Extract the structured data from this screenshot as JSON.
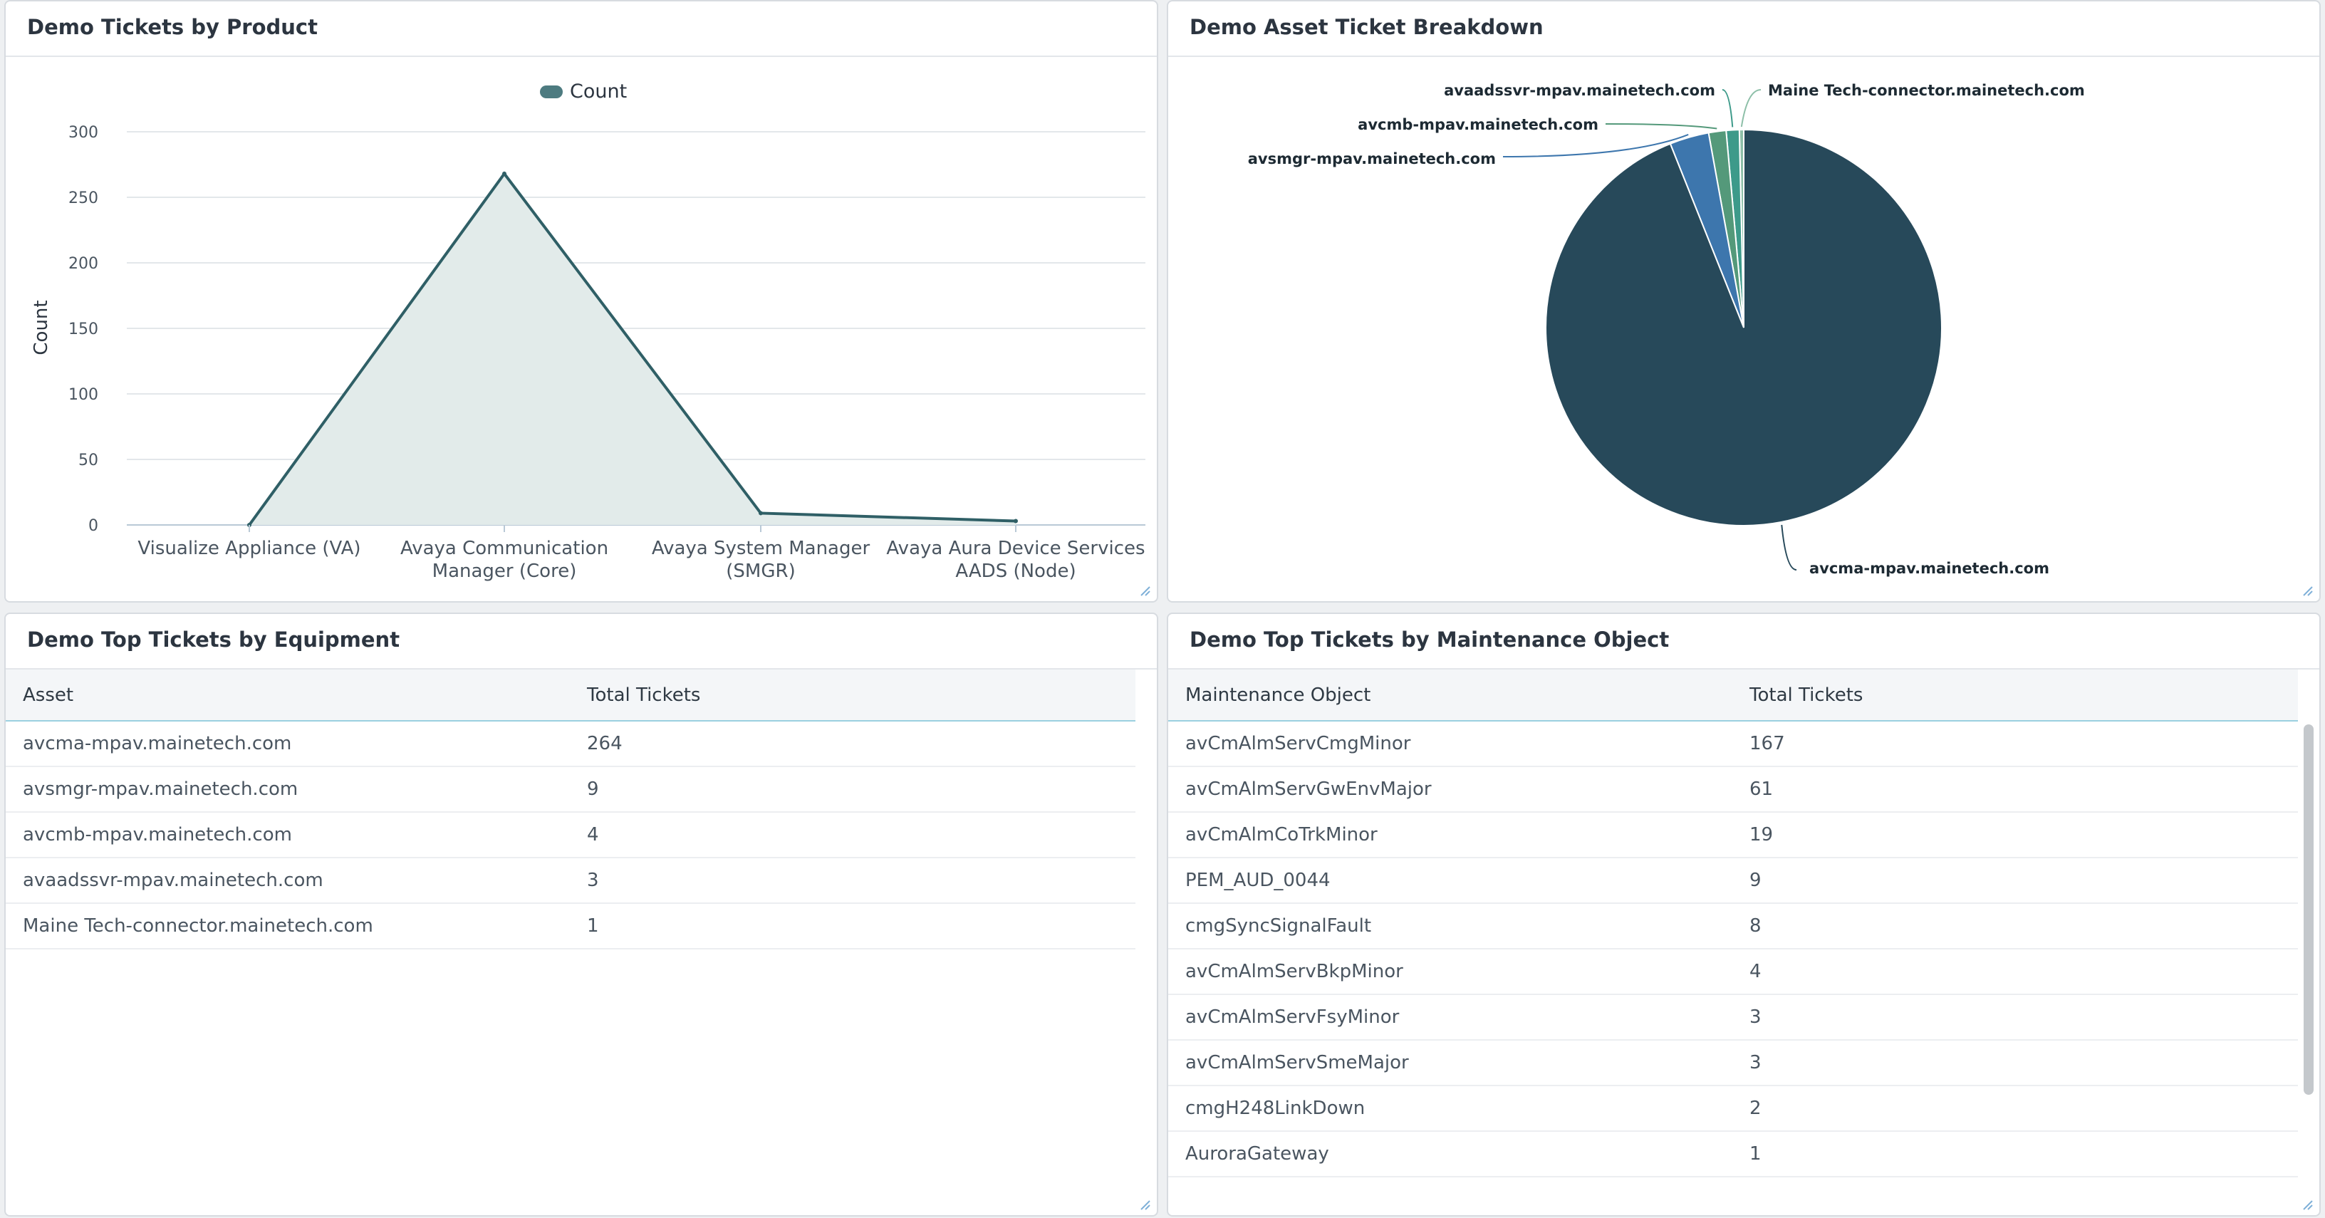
{
  "colors": {
    "line": "#2f5f66",
    "area": "#e2ebea",
    "pie_main": "#27495a",
    "pie_blue": "#3d76ad",
    "pie_green": "#54997a",
    "pie_teal": "#3d9a8a",
    "pie_light": "#8dbfa8"
  },
  "panels": {
    "tickets_by_product": {
      "title": "Demo Tickets by Product"
    },
    "asset_breakdown": {
      "title": "Demo Asset Ticket Breakdown"
    },
    "top_equipment": {
      "title": "Demo Top Tickets by Equipment",
      "columns": [
        "Asset",
        "Total Tickets"
      ],
      "rows": [
        [
          "avcma-mpav.mainetech.com",
          "264"
        ],
        [
          "avsmgr-mpav.mainetech.com",
          "9"
        ],
        [
          "avcmb-mpav.mainetech.com",
          "4"
        ],
        [
          "avaadssvr-mpav.mainetech.com",
          "3"
        ],
        [
          "Maine Tech-connector.mainetech.com",
          "1"
        ]
      ]
    },
    "top_maintenance": {
      "title": "Demo Top Tickets by Maintenance Object",
      "columns": [
        "Maintenance Object",
        "Total Tickets"
      ],
      "rows": [
        [
          "avCmAlmServCmgMinor",
          "167"
        ],
        [
          "avCmAlmServGwEnvMajor",
          "61"
        ],
        [
          "avCmAlmCoTrkMinor",
          "19"
        ],
        [
          "PEM_AUD_0044",
          "9"
        ],
        [
          "cmgSyncSignalFault",
          "8"
        ],
        [
          "avCmAlmServBkpMinor",
          "4"
        ],
        [
          "avCmAlmServFsyMinor",
          "3"
        ],
        [
          "avCmAlmServSmeMajor",
          "3"
        ],
        [
          "cmgH248LinkDown",
          "2"
        ],
        [
          "AuroraGateway",
          "1"
        ]
      ]
    }
  },
  "chart_data": [
    {
      "type": "area",
      "title": "Demo Tickets by Product",
      "ylabel": "Count",
      "legend": [
        "Count"
      ],
      "legend_position": "top",
      "categories": [
        [
          "Visualize Appliance (VA)"
        ],
        [
          "Avaya Communication",
          "Manager (Core)"
        ],
        [
          "Avaya System Manager",
          "(SMGR)"
        ],
        [
          "Avaya Aura Device Services",
          "AADS (Node)"
        ]
      ],
      "values": [
        0,
        268,
        9,
        3
      ],
      "yticks": [
        0,
        50,
        100,
        150,
        200,
        250,
        300
      ],
      "ylim": [
        0,
        300
      ],
      "grid": true
    },
    {
      "type": "pie",
      "title": "Demo Asset Ticket Breakdown",
      "slices": [
        {
          "label": "avcma-mpav.mainetech.com",
          "value": 264,
          "color": "#27495a"
        },
        {
          "label": "avsmgr-mpav.mainetech.com",
          "value": 9,
          "color": "#3d76ad"
        },
        {
          "label": "avcmb-mpav.mainetech.com",
          "value": 4,
          "color": "#54997a"
        },
        {
          "label": "avaadssvr-mpav.mainetech.com",
          "value": 3,
          "color": "#3d9a8a"
        },
        {
          "label": "Maine Tech-connector.mainetech.com",
          "value": 1,
          "color": "#8dbfa8"
        }
      ]
    }
  ]
}
